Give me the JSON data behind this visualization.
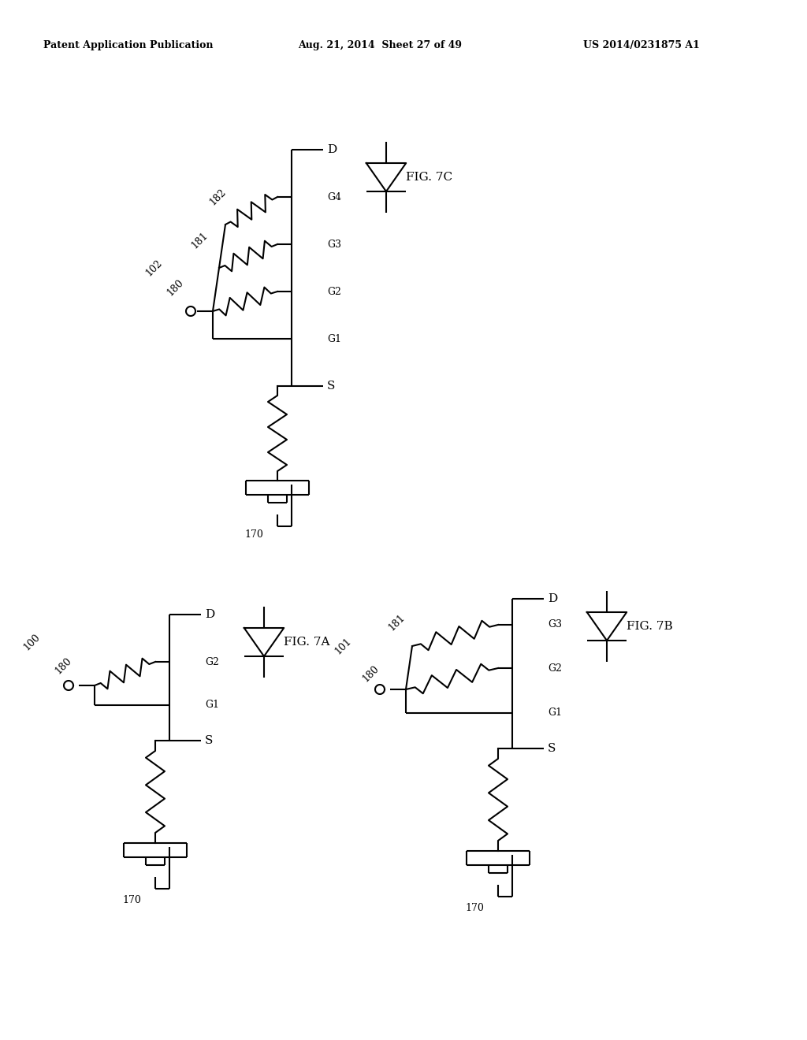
{
  "bg_color": "#ffffff",
  "line_color": "#000000",
  "header_left": "Patent Application Publication",
  "header_mid": "Aug. 21, 2014  Sheet 27 of 49",
  "header_right": "US 2014/0231875 A1"
}
